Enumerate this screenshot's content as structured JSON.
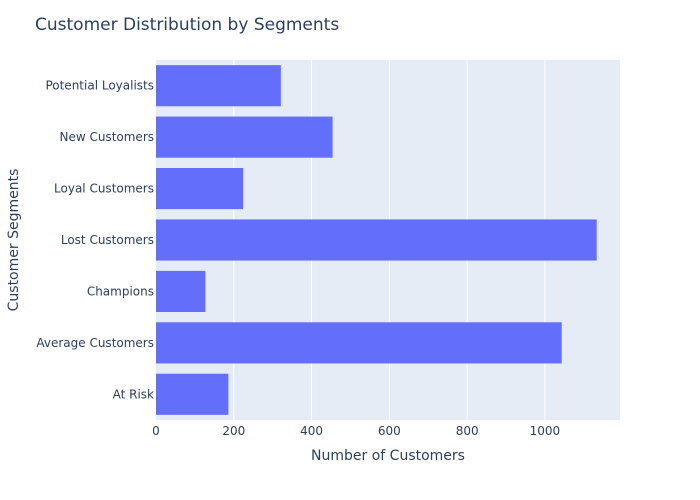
{
  "chart_data": {
    "type": "bar",
    "orientation": "horizontal",
    "title": "Customer Distribution by Segments",
    "xlabel": "Number of Customers",
    "ylabel": "Customer Segments",
    "categories": [
      "At Risk",
      "Average Customers",
      "Champions",
      "Lost Customers",
      "Loyal Customers",
      "New Customers",
      "Potential Loyalists"
    ],
    "values": [
      186,
      1043,
      127,
      1133,
      224,
      454,
      321
    ],
    "xlim": [
      0,
      1193
    ],
    "xticks": [
      0,
      200,
      400,
      600,
      800,
      1000
    ],
    "grid": true,
    "colors": {
      "bar": "#636efa",
      "plot_bg": "#e5ecf6",
      "grid": "#ffffff",
      "text": "#2a3f5f"
    }
  }
}
